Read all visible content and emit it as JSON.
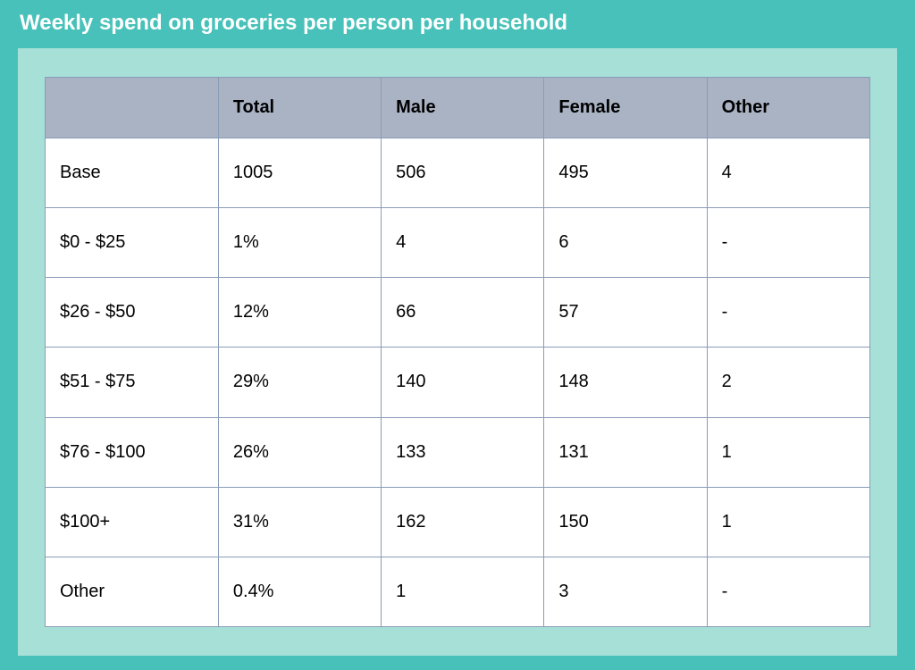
{
  "title": "Weekly spend on groceries per person per household",
  "table": {
    "type": "table",
    "background_color": "#ffffff",
    "border_color": "#8a9bb8",
    "header_background": "#aab3c4",
    "header_text_color": "#000000",
    "cell_text_color": "#000000",
    "font_size_header": 20,
    "font_size_cell": 20,
    "outer_bg_color": "#47c1b9",
    "inner_bg_color": "#a7e0d7",
    "title_color": "#ffffff",
    "title_fontsize": 24,
    "columns": [
      "",
      "Total",
      "Male",
      "Female",
      "Other"
    ],
    "rows": [
      [
        "Base",
        "1005",
        "506",
        "495",
        "4"
      ],
      [
        "$0 - $25",
        "1%",
        "4",
        "6",
        "-"
      ],
      [
        "$26 - $50",
        "12%",
        "66",
        "57",
        "-"
      ],
      [
        "$51 - $75",
        "29%",
        "140",
        "148",
        "2"
      ],
      [
        "$76 - $100",
        "26%",
        "133",
        "131",
        "1"
      ],
      [
        "$100+",
        "31%",
        "162",
        "150",
        "1"
      ],
      [
        "Other",
        "0.4%",
        "1",
        "3",
        "-"
      ]
    ]
  }
}
